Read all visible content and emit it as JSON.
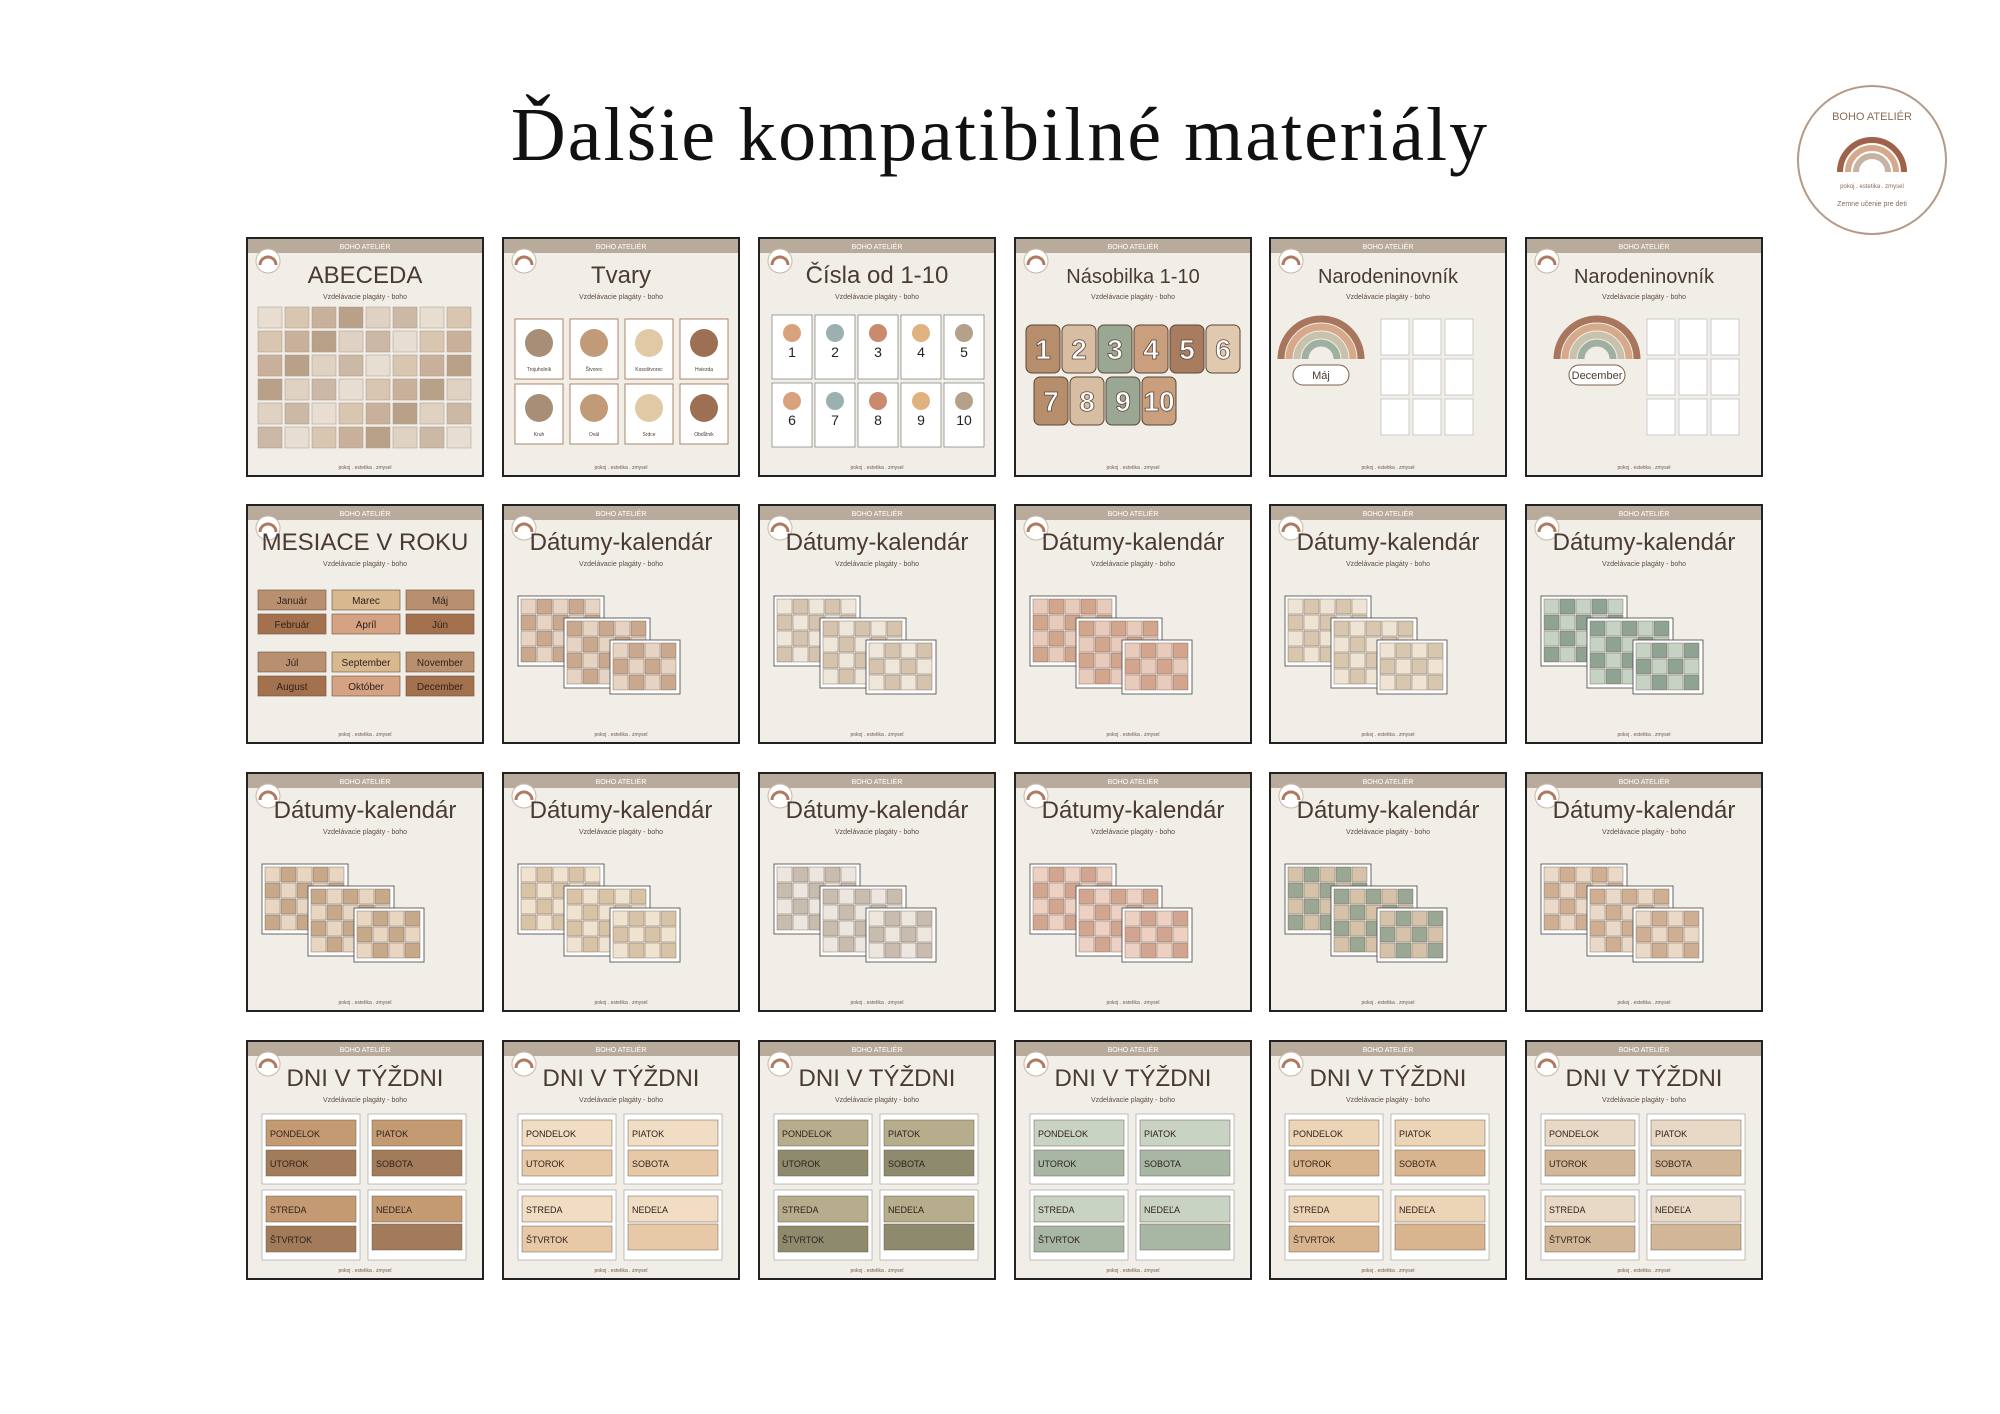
{
  "header": {
    "title": "Ďalšie kompatibilné materiály"
  },
  "logo": {
    "name": "BOHO ATELIÉR",
    "tagline": "pokoj . estetika . zmysel",
    "motto": "Zemne učenie pre deti"
  },
  "cards": [
    {
      "brand": "BOHO ATELIÉR",
      "title": "ABECEDA",
      "subtitle": "Vzdelávacie plagáty - boho",
      "footer": "pokoj . estetika . zmysel"
    },
    {
      "brand": "BOHO ATELIÉR",
      "title": "Tvary",
      "subtitle": "Vzdelávacie plagáty - boho",
      "footer": "pokoj . estetika . zmysel",
      "labels": [
        "Trojuholník",
        "Štvorec",
        "Kosoštvorec",
        "Hviezda",
        "Kruh",
        "Ovál",
        "Srdce",
        "Obdĺžnik"
      ]
    },
    {
      "brand": "BOHO ATELIÉR",
      "title": "Čísla od 1-10",
      "subtitle": "Vzdelávacie plagáty - boho",
      "footer": "pokoj . estetika . zmysel",
      "labels": [
        "1",
        "2",
        "3",
        "4",
        "5",
        "6",
        "7",
        "8",
        "9",
        "10"
      ]
    },
    {
      "brand": "BOHO ATELIÉR",
      "title": "Násobilka 1-10",
      "subtitle": "Vzdelávacie plagáty - boho",
      "footer": "pokoj . estetika . zmysel",
      "labels": [
        "1",
        "2",
        "3",
        "4",
        "5",
        "6",
        "7",
        "8",
        "9",
        "10"
      ]
    },
    {
      "brand": "BOHO ATELIÉR",
      "title": "Narodeninovník",
      "subtitle": "Vzdelávacie plagáty - boho",
      "footer": "pokoj . estetika . zmysel",
      "labels": [
        "Máj"
      ]
    },
    {
      "brand": "BOHO ATELIÉR",
      "title": "Narodeninovník",
      "subtitle": "Vzdelávacie plagáty - boho",
      "footer": "pokoj . estetika . zmysel",
      "labels": [
        "December"
      ]
    },
    {
      "brand": "BOHO ATELIÉR",
      "title": "MESIACE V ROKU",
      "subtitle": "Vzdelávacie plagáty - boho",
      "footer": "pokoj . estetika . zmysel",
      "labels": [
        "Január",
        "Február",
        "Marec",
        "Apríl",
        "Máj",
        "Jún",
        "Júl",
        "August",
        "September",
        "Október",
        "November",
        "December"
      ]
    },
    {
      "brand": "BOHO ATELIÉR",
      "title": "Dátumy-kalendár",
      "subtitle": "Vzdelávacie plagáty - boho",
      "footer": "pokoj . estetika . zmysel"
    },
    {
      "brand": "BOHO ATELIÉR",
      "title": "Dátumy-kalendár",
      "subtitle": "Vzdelávacie plagáty - boho",
      "footer": "pokoj . estetika . zmysel"
    },
    {
      "brand": "BOHO ATELIÉR",
      "title": "Dátumy-kalendár",
      "subtitle": "Vzdelávacie plagáty - boho",
      "footer": "pokoj . estetika . zmysel"
    },
    {
      "brand": "BOHO ATELIÉR",
      "title": "Dátumy-kalendár",
      "subtitle": "Vzdelávacie plagáty - boho",
      "footer": "pokoj . estetika . zmysel"
    },
    {
      "brand": "BOHO ATELIÉR",
      "title": "Dátumy-kalendár",
      "subtitle": "Vzdelávacie plagáty - boho",
      "footer": "pokoj . estetika . zmysel"
    },
    {
      "brand": "BOHO ATELIÉR",
      "title": "Dátumy-kalendár",
      "subtitle": "Vzdelávacie plagáty - boho",
      "footer": "pokoj . estetika . zmysel"
    },
    {
      "brand": "BOHO ATELIÉR",
      "title": "Dátumy-kalendár",
      "subtitle": "Vzdelávacie plagáty - boho",
      "footer": "pokoj . estetika . zmysel"
    },
    {
      "brand": "BOHO ATELIÉR",
      "title": "Dátumy-kalendár",
      "subtitle": "Vzdelávacie plagáty - boho",
      "footer": "pokoj . estetika . zmysel"
    },
    {
      "brand": "BOHO ATELIÉR",
      "title": "Dátumy-kalendár",
      "subtitle": "Vzdelávacie plagáty - boho",
      "footer": "pokoj . estetika . zmysel"
    },
    {
      "brand": "BOHO ATELIÉR",
      "title": "Dátumy-kalendár",
      "subtitle": "Vzdelávacie plagáty - boho",
      "footer": "pokoj . estetika . zmysel"
    },
    {
      "brand": "BOHO ATELIÉR",
      "title": "Dátumy-kalendár",
      "subtitle": "Vzdelávacie plagáty - boho",
      "footer": "pokoj . estetika . zmysel"
    },
    {
      "brand": "BOHO ATELIÉR",
      "title": "DNI V TÝŽDNI",
      "subtitle": "Vzdelávacie plagáty - boho",
      "footer": "pokoj . estetika . zmysel",
      "labels": [
        "PONDELOK",
        "UTOROK",
        "STREDA",
        "ŠTVRTOK",
        "PIATOK",
        "SOBOTA",
        "NEDEĽA"
      ]
    },
    {
      "brand": "BOHO ATELIÉR",
      "title": "DNI V TÝŽDNI",
      "subtitle": "Vzdelávacie plagáty - boho",
      "footer": "pokoj . estetika . zmysel",
      "labels": [
        "PONDELOK",
        "UTOROK",
        "STREDA",
        "ŠTVRTOK",
        "PIATOK",
        "SOBOTA",
        "NEDEĽA"
      ]
    },
    {
      "brand": "BOHO ATELIÉR",
      "title": "DNI V TÝŽDNI",
      "subtitle": "Vzdelávacie plagáty - boho",
      "footer": "pokoj . estetika . zmysel",
      "labels": [
        "PONDELOK",
        "UTOROK",
        "STREDA",
        "ŠTVRTOK",
        "PIATOK",
        "SOBOTA",
        "NEDEĽA"
      ]
    },
    {
      "brand": "BOHO ATELIÉR",
      "title": "DNI V TÝŽDNI",
      "subtitle": "Vzdelávacie plagáty - boho",
      "footer": "pokoj . estetika . zmysel",
      "labels": [
        "PONDELOK",
        "UTOROK",
        "STREDA",
        "ŠTVRTOK",
        "PIATOK",
        "SOBOTA",
        "NEDEĽA"
      ]
    },
    {
      "brand": "BOHO ATELIÉR",
      "title": "DNI V TÝŽDNI",
      "subtitle": "Vzdelávacie plagáty - boho",
      "footer": "pokoj . estetika . zmysel",
      "labels": [
        "PONDELOK",
        "UTOROK",
        "STREDA",
        "ŠTVRTOK",
        "PIATOK",
        "SOBOTA",
        "NEDEĽA"
      ]
    },
    {
      "brand": "BOHO ATELIÉR",
      "title": "DNI V TÝŽDNI",
      "subtitle": "Vzdelávacie plagáty - boho",
      "footer": "pokoj . estetika . zmysel",
      "labels": [
        "PONDELOK",
        "UTOROK",
        "STREDA",
        "ŠTVRTOK",
        "PIATOK",
        "SOBOTA",
        "NEDEĽA"
      ]
    }
  ]
}
